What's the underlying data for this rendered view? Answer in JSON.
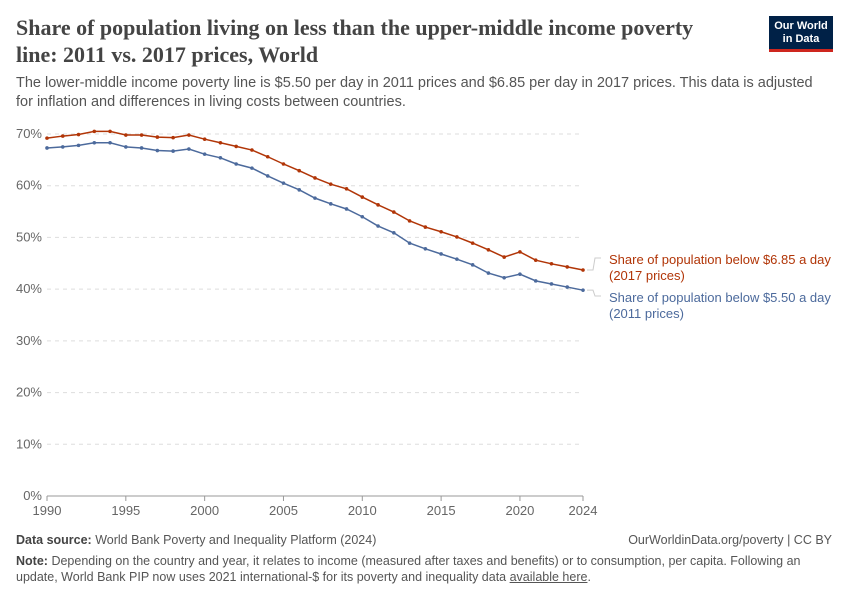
{
  "header": {
    "title": "Share of population living on less than the upper-middle income poverty line: 2011 vs. 2017 prices, World",
    "subtitle": "The lower-middle income poverty line is $5.50 per day in 2011 prices and $6.85 per day in 2017 prices. This data is adjusted for inflation and differences in living costs between countries.",
    "logo": "Our World in Data"
  },
  "footer": {
    "source_label": "Data source:",
    "source": "World Bank Poverty and Inequality Platform (2024)",
    "url": "OurWorldinData.org/poverty | CC BY",
    "note_label": "Note:",
    "note": "Depending on the country and year, it relates to income (measured after taxes and benefits) or to consumption, per capita. Following an update, World Bank PIP now uses 2021 international-$ for its poverty and inequality data",
    "note_link": "available here",
    "note_end": "."
  },
  "chart_data": {
    "type": "line",
    "x": [
      1990,
      1991,
      1992,
      1993,
      1994,
      1995,
      1996,
      1997,
      1998,
      1999,
      2000,
      2001,
      2002,
      2003,
      2004,
      2005,
      2006,
      2007,
      2008,
      2009,
      2010,
      2011,
      2012,
      2013,
      2014,
      2015,
      2016,
      2017,
      2018,
      2019,
      2020,
      2021,
      2022,
      2023,
      2024
    ],
    "xticks": [
      "1990",
      "1995",
      "2000",
      "2005",
      "2010",
      "2015",
      "2020",
      "2024"
    ],
    "yticks": [
      "0%",
      "10%",
      "20%",
      "30%",
      "40%",
      "50%",
      "60%",
      "70%"
    ],
    "ylim": [
      0,
      70
    ],
    "grid": "horizontal dashed",
    "legend": "right, line-end labels",
    "series": [
      {
        "name": "Share of population below $6.85 a day",
        "name2": "(2017 prices)",
        "color": "#b13507",
        "values": [
          69.2,
          69.6,
          69.9,
          70.5,
          70.5,
          69.8,
          69.8,
          69.4,
          69.3,
          69.8,
          69.0,
          68.3,
          67.6,
          66.9,
          65.6,
          64.2,
          62.9,
          61.5,
          60.3,
          59.4,
          57.8,
          56.3,
          54.9,
          53.2,
          52.0,
          51.1,
          50.1,
          48.9,
          47.6,
          46.2,
          47.2,
          45.6,
          44.9,
          44.3,
          43.7
        ]
      },
      {
        "name": "Share of population below $5.50 a day",
        "name2": "(2011 prices)",
        "color": "#4c6a9c",
        "values": [
          67.3,
          67.5,
          67.8,
          68.3,
          68.3,
          67.5,
          67.3,
          66.8,
          66.7,
          67.1,
          66.1,
          65.4,
          64.2,
          63.4,
          61.9,
          60.5,
          59.2,
          57.6,
          56.5,
          55.5,
          54.0,
          52.2,
          50.9,
          48.9,
          47.8,
          46.8,
          45.8,
          44.7,
          43.1,
          42.2,
          42.9,
          41.6,
          41.0,
          40.4,
          39.8
        ]
      }
    ]
  }
}
